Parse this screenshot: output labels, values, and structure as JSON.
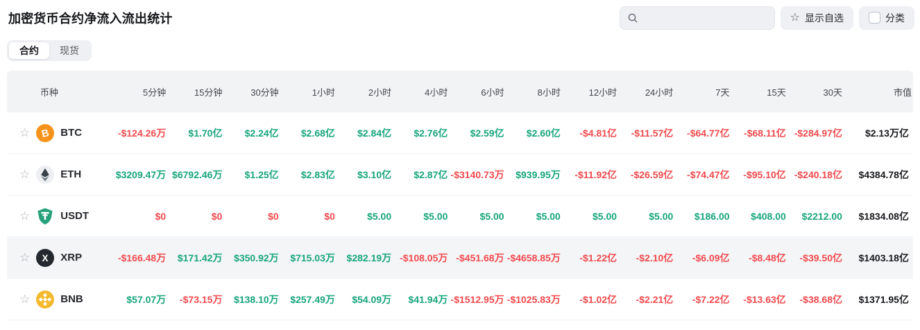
{
  "page": {
    "title": "加密货币合约净流入流出统计"
  },
  "toolbar": {
    "search_placeholder": "",
    "search_value": "",
    "show_favorites_label": "显示自选",
    "category_label": "分类"
  },
  "tabs": [
    {
      "id": "contracts",
      "label": "合约",
      "active": true
    },
    {
      "id": "spot",
      "label": "现货",
      "active": false
    }
  ],
  "colors": {
    "up": "#17A57C",
    "down": "#F0494D",
    "btc": "#F7931A",
    "eth_bg": "#edeff3",
    "eth_dark": "#3b4149",
    "eth_light": "#6b7380",
    "usdt": "#26A17B",
    "xrp": "#23292F",
    "bnb": "#F3BA2F"
  },
  "table": {
    "columns": [
      "币种",
      "5分钟",
      "15分钟",
      "30分钟",
      "1小时",
      "2小时",
      "4小时",
      "6小时",
      "8小时",
      "12小时",
      "24小时",
      "7天",
      "15天",
      "30天",
      "市值"
    ],
    "rows": [
      {
        "symbol": "BTC",
        "icon": "btc-coin-icon",
        "highlighted": false,
        "values": [
          "-$124.26万",
          "$1.70亿",
          "$2.24亿",
          "$2.68亿",
          "$2.84亿",
          "$2.76亿",
          "$2.59亿",
          "$2.60亿",
          "-$4.81亿",
          "-$11.57亿",
          "-$64.77亿",
          "-$68.11亿",
          "-$284.97亿"
        ],
        "trends": [
          "down",
          "up",
          "up",
          "up",
          "up",
          "up",
          "up",
          "up",
          "down",
          "down",
          "down",
          "down",
          "down"
        ],
        "market_cap": "$2.13万亿"
      },
      {
        "symbol": "ETH",
        "icon": "eth-coin-icon",
        "highlighted": false,
        "values": [
          "$3209.47万",
          "$6792.46万",
          "$1.25亿",
          "$2.83亿",
          "$3.10亿",
          "$2.87亿",
          "-$3140.73万",
          "$939.95万",
          "-$11.92亿",
          "-$26.59亿",
          "-$74.47亿",
          "-$95.10亿",
          "-$240.18亿"
        ],
        "trends": [
          "up",
          "up",
          "up",
          "up",
          "up",
          "up",
          "down",
          "up",
          "down",
          "down",
          "down",
          "down",
          "down"
        ],
        "market_cap": "$4384.78亿"
      },
      {
        "symbol": "USDT",
        "icon": "usdt-coin-icon",
        "highlighted": false,
        "values": [
          "$0",
          "$0",
          "$0",
          "$0",
          "$5.00",
          "$5.00",
          "$5.00",
          "$5.00",
          "$5.00",
          "$5.00",
          "$186.00",
          "$408.00",
          "$2212.00"
        ],
        "trends": [
          "down",
          "down",
          "down",
          "down",
          "up",
          "up",
          "up",
          "up",
          "up",
          "up",
          "up",
          "up",
          "up"
        ],
        "market_cap": "$1834.08亿"
      },
      {
        "symbol": "XRP",
        "icon": "xrp-coin-icon",
        "highlighted": true,
        "values": [
          "-$166.48万",
          "$171.42万",
          "$350.92万",
          "$715.03万",
          "$282.19万",
          "-$108.05万",
          "-$451.68万",
          "-$4658.85万",
          "-$1.22亿",
          "-$2.10亿",
          "-$6.09亿",
          "-$8.48亿",
          "-$39.50亿"
        ],
        "trends": [
          "down",
          "up",
          "up",
          "up",
          "up",
          "down",
          "down",
          "down",
          "down",
          "down",
          "down",
          "down",
          "down"
        ],
        "market_cap": "$1403.18亿"
      },
      {
        "symbol": "BNB",
        "icon": "bnb-coin-icon",
        "highlighted": false,
        "values": [
          "$57.07万",
          "-$73.15万",
          "$138.10万",
          "$257.49万",
          "$54.09万",
          "$41.94万",
          "-$1512.95万",
          "-$1025.83万",
          "-$1.02亿",
          "-$2.21亿",
          "-$7.22亿",
          "-$13.63亿",
          "-$38.68亿"
        ],
        "trends": [
          "up",
          "down",
          "up",
          "up",
          "up",
          "up",
          "down",
          "down",
          "down",
          "down",
          "down",
          "down",
          "down"
        ],
        "market_cap": "$1371.95亿"
      }
    ]
  }
}
